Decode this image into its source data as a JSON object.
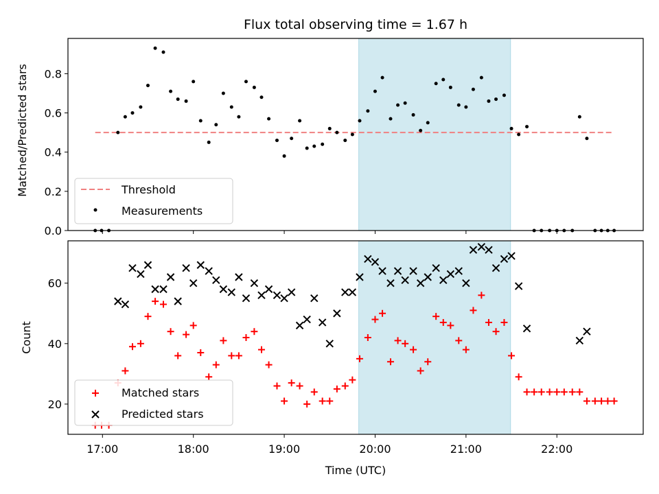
{
  "chart_data": {
    "type": "scatter",
    "title": "Flux total observing time = 1.67 h",
    "xlabel": "Time (UTC)",
    "x_ticks": [
      {
        "label": "17:00",
        "hour": 17
      },
      {
        "label": "18:00",
        "hour": 18
      },
      {
        "label": "19:00",
        "hour": 19
      },
      {
        "label": "20:00",
        "hour": 20
      },
      {
        "label": "21:00",
        "hour": 21
      },
      {
        "label": "22:00",
        "hour": 22
      }
    ],
    "xlim_hours": [
      16.62,
      22.95
    ],
    "highlight_span_hours": [
      19.82,
      21.49
    ],
    "highlight_color": "#add8e6",
    "top_panel": {
      "ylabel": "Matched/Predicted stars",
      "ylim": [
        0,
        0.98
      ],
      "y_ticks": [
        0.0,
        0.2,
        0.4,
        0.6,
        0.8
      ],
      "y_tick_labels": [
        "0.0",
        "0.2",
        "0.4",
        "0.6",
        "0.8"
      ],
      "threshold": {
        "name": "Threshold",
        "value": 0.5,
        "x_range_hours": [
          16.92,
          22.63
        ],
        "color": "#f08080"
      },
      "measurements": {
        "name": "Measurements",
        "color": "#000000",
        "points": [
          [
            16.92,
            0.0
          ],
          [
            16.99,
            0.0
          ],
          [
            17.07,
            0.0
          ],
          [
            17.17,
            0.5
          ],
          [
            17.25,
            0.58
          ],
          [
            17.33,
            0.6
          ],
          [
            17.42,
            0.63
          ],
          [
            17.5,
            0.74
          ],
          [
            17.58,
            0.93
          ],
          [
            17.67,
            0.91
          ],
          [
            17.75,
            0.71
          ],
          [
            17.83,
            0.67
          ],
          [
            17.92,
            0.66
          ],
          [
            18.0,
            0.76
          ],
          [
            18.08,
            0.56
          ],
          [
            18.17,
            0.45
          ],
          [
            18.25,
            0.54
          ],
          [
            18.33,
            0.7
          ],
          [
            18.42,
            0.63
          ],
          [
            18.5,
            0.58
          ],
          [
            18.58,
            0.76
          ],
          [
            18.67,
            0.73
          ],
          [
            18.75,
            0.68
          ],
          [
            18.83,
            0.57
          ],
          [
            18.92,
            0.46
          ],
          [
            19.0,
            0.38
          ],
          [
            19.08,
            0.47
          ],
          [
            19.17,
            0.56
          ],
          [
            19.25,
            0.42
          ],
          [
            19.33,
            0.43
          ],
          [
            19.42,
            0.44
          ],
          [
            19.5,
            0.52
          ],
          [
            19.58,
            0.5
          ],
          [
            19.67,
            0.46
          ],
          [
            19.75,
            0.49
          ],
          [
            19.83,
            0.56
          ],
          [
            19.92,
            0.61
          ],
          [
            20.0,
            0.71
          ],
          [
            20.08,
            0.78
          ],
          [
            20.17,
            0.57
          ],
          [
            20.25,
            0.64
          ],
          [
            20.33,
            0.65
          ],
          [
            20.42,
            0.59
          ],
          [
            20.5,
            0.51
          ],
          [
            20.58,
            0.55
          ],
          [
            20.67,
            0.75
          ],
          [
            20.75,
            0.77
          ],
          [
            20.83,
            0.73
          ],
          [
            20.92,
            0.64
          ],
          [
            21.0,
            0.63
          ],
          [
            21.08,
            0.72
          ],
          [
            21.17,
            0.78
          ],
          [
            21.25,
            0.66
          ],
          [
            21.33,
            0.67
          ],
          [
            21.42,
            0.69
          ],
          [
            21.5,
            0.52
          ],
          [
            21.58,
            0.49
          ],
          [
            21.67,
            0.53
          ],
          [
            21.75,
            0.0
          ],
          [
            21.83,
            0.0
          ],
          [
            21.92,
            0.0
          ],
          [
            22.0,
            0.0
          ],
          [
            22.08,
            0.0
          ],
          [
            22.17,
            0.0
          ],
          [
            22.25,
            0.58
          ],
          [
            22.33,
            0.47
          ],
          [
            22.42,
            0.0
          ],
          [
            22.49,
            0.0
          ],
          [
            22.56,
            0.0
          ],
          [
            22.63,
            0.0
          ]
        ]
      },
      "legend_position": "lower-left"
    },
    "bottom_panel": {
      "ylabel": "Count",
      "ylim": [
        10,
        74
      ],
      "y_ticks": [
        20,
        40,
        60
      ],
      "matched": {
        "name": "Matched stars",
        "color": "#ff0000",
        "points": [
          [
            16.92,
            13
          ],
          [
            16.99,
            13
          ],
          [
            17.07,
            13
          ],
          [
            17.17,
            27
          ],
          [
            17.25,
            31
          ],
          [
            17.33,
            39
          ],
          [
            17.42,
            40
          ],
          [
            17.5,
            49
          ],
          [
            17.58,
            54
          ],
          [
            17.67,
            53
          ],
          [
            17.75,
            44
          ],
          [
            17.83,
            36
          ],
          [
            17.92,
            43
          ],
          [
            18.0,
            46
          ],
          [
            18.08,
            37
          ],
          [
            18.17,
            29
          ],
          [
            18.25,
            33
          ],
          [
            18.33,
            41
          ],
          [
            18.42,
            36
          ],
          [
            18.5,
            36
          ],
          [
            18.58,
            42
          ],
          [
            18.67,
            44
          ],
          [
            18.75,
            38
          ],
          [
            18.83,
            33
          ],
          [
            18.92,
            26
          ],
          [
            19.0,
            21
          ],
          [
            19.08,
            27
          ],
          [
            19.17,
            26
          ],
          [
            19.25,
            20
          ],
          [
            19.33,
            24
          ],
          [
            19.42,
            21
          ],
          [
            19.5,
            21
          ],
          [
            19.58,
            25
          ],
          [
            19.67,
            26
          ],
          [
            19.75,
            28
          ],
          [
            19.83,
            35
          ],
          [
            19.92,
            42
          ],
          [
            20.0,
            48
          ],
          [
            20.08,
            50
          ],
          [
            20.17,
            34
          ],
          [
            20.25,
            41
          ],
          [
            20.33,
            40
          ],
          [
            20.42,
            38
          ],
          [
            20.5,
            31
          ],
          [
            20.58,
            34
          ],
          [
            20.67,
            49
          ],
          [
            20.75,
            47
          ],
          [
            20.83,
            46
          ],
          [
            20.92,
            41
          ],
          [
            21.0,
            38
          ],
          [
            21.08,
            51
          ],
          [
            21.17,
            56
          ],
          [
            21.25,
            47
          ],
          [
            21.33,
            44
          ],
          [
            21.42,
            47
          ],
          [
            21.5,
            36
          ],
          [
            21.58,
            29
          ],
          [
            21.67,
            24
          ],
          [
            21.75,
            24
          ],
          [
            21.83,
            24
          ],
          [
            21.92,
            24
          ],
          [
            22.0,
            24
          ],
          [
            22.08,
            24
          ],
          [
            22.17,
            24
          ],
          [
            22.25,
            24
          ],
          [
            22.33,
            21
          ],
          [
            22.42,
            21
          ],
          [
            22.49,
            21
          ],
          [
            22.56,
            21
          ],
          [
            22.63,
            21
          ]
        ]
      },
      "predicted": {
        "name": "Predicted stars",
        "color": "#000000",
        "points": [
          [
            17.17,
            54
          ],
          [
            17.25,
            53
          ],
          [
            17.33,
            65
          ],
          [
            17.42,
            63
          ],
          [
            17.5,
            66
          ],
          [
            17.58,
            58
          ],
          [
            17.67,
            58
          ],
          [
            17.75,
            62
          ],
          [
            17.83,
            54
          ],
          [
            17.92,
            65
          ],
          [
            18.0,
            60
          ],
          [
            18.08,
            66
          ],
          [
            18.17,
            64
          ],
          [
            18.25,
            61
          ],
          [
            18.33,
            58
          ],
          [
            18.42,
            57
          ],
          [
            18.5,
            62
          ],
          [
            18.58,
            55
          ],
          [
            18.67,
            60
          ],
          [
            18.75,
            56
          ],
          [
            18.83,
            58
          ],
          [
            18.92,
            56
          ],
          [
            19.0,
            55
          ],
          [
            19.08,
            57
          ],
          [
            19.17,
            46
          ],
          [
            19.25,
            48
          ],
          [
            19.33,
            55
          ],
          [
            19.42,
            47
          ],
          [
            19.5,
            40
          ],
          [
            19.58,
            50
          ],
          [
            19.67,
            57
          ],
          [
            19.75,
            57
          ],
          [
            19.83,
            62
          ],
          [
            19.92,
            68
          ],
          [
            20.0,
            67
          ],
          [
            20.08,
            64
          ],
          [
            20.17,
            60
          ],
          [
            20.25,
            64
          ],
          [
            20.33,
            61
          ],
          [
            20.42,
            64
          ],
          [
            20.5,
            60
          ],
          [
            20.58,
            62
          ],
          [
            20.67,
            65
          ],
          [
            20.75,
            61
          ],
          [
            20.83,
            63
          ],
          [
            20.92,
            64
          ],
          [
            21.0,
            60
          ],
          [
            21.08,
            71
          ],
          [
            21.17,
            72
          ],
          [
            21.25,
            71
          ],
          [
            21.33,
            65
          ],
          [
            21.42,
            68
          ],
          [
            21.5,
            69
          ],
          [
            21.58,
            59
          ],
          [
            21.67,
            45
          ],
          [
            22.25,
            41
          ],
          [
            22.33,
            44
          ]
        ]
      },
      "legend_position": "lower-left"
    }
  }
}
